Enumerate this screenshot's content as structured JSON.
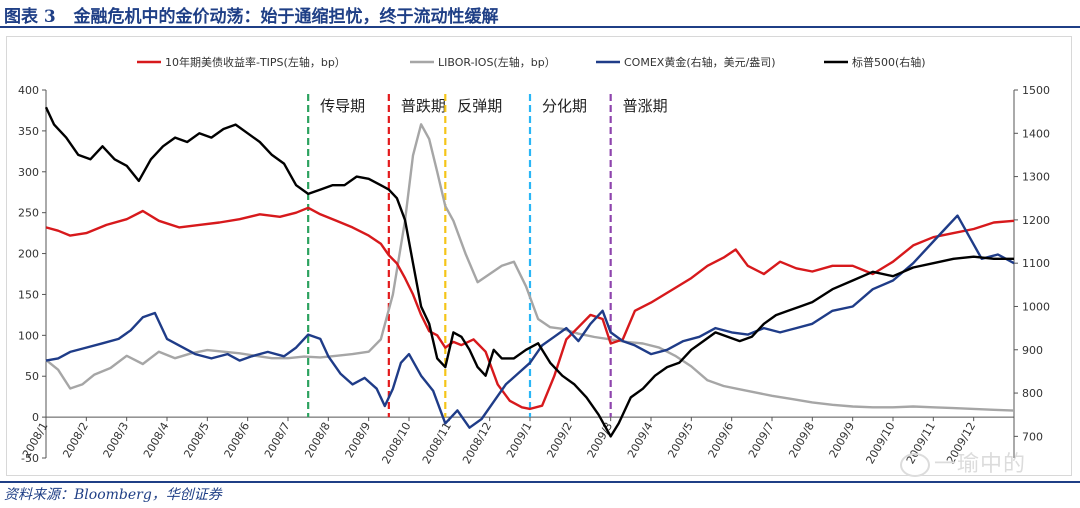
{
  "header": {
    "figure_label": "图表 3",
    "figure_title": "金融危机中的金价动荡：始于通缩担忧，终于流动性缓解"
  },
  "footer": {
    "source": "资料来源：Bloomberg，华创证券"
  },
  "watermark": {
    "text": "一瑜中的"
  },
  "colors": {
    "tips": "#d7191c",
    "libor": "#a6a6a6",
    "comex": "#1f3c88",
    "spx": "#000000",
    "phase_green": "#2ca25f",
    "phase_red": "#e31a1c",
    "phase_yellow": "#f5c518",
    "phase_cyan": "#29b6f6",
    "phase_purple": "#8e44ad",
    "header": "#1f3f86"
  },
  "chart_data": {
    "type": "line",
    "legend_position": "top",
    "x_ticks": [
      "2008/1",
      "2008/2",
      "2008/3",
      "2008/4",
      "2008/5",
      "2008/6",
      "2008/7",
      "2008/8",
      "2008/9",
      "2008/10",
      "2008/11",
      "2008/12",
      "2009/1",
      "2009/2",
      "2009/3",
      "2009/4",
      "2009/5",
      "2009/6",
      "2009/7",
      "2009/8",
      "2009/9",
      "2009/10",
      "2009/11",
      "2009/12"
    ],
    "x_range": [
      0,
      24
    ],
    "left_axis": {
      "min": -50,
      "max": 400,
      "ticks": [
        "-50",
        "0",
        "50",
        "100",
        "150",
        "200",
        "250",
        "300",
        "350",
        "400"
      ]
    },
    "right_axis": {
      "min": 650,
      "max": 1500,
      "ticks": [
        "700",
        "800",
        "900",
        "1000",
        "1100",
        "1200",
        "1300",
        "1400",
        "1500"
      ]
    },
    "phases": [
      {
        "label": "传导期",
        "x": 6.5,
        "color_key": "phase_green"
      },
      {
        "label": "普跌期",
        "x": 8.5,
        "color_key": "phase_red"
      },
      {
        "label": "反弹期",
        "x": 9.9,
        "color_key": "phase_yellow"
      },
      {
        "label": "分化期",
        "x": 12.0,
        "color_key": "phase_cyan"
      },
      {
        "label": "普涨期",
        "x": 14.0,
        "color_key": "phase_purple"
      }
    ],
    "series": [
      {
        "name": "10年期美债收益率-TIPS(左轴，bp）",
        "axis": "left",
        "color_key": "tips",
        "points": [
          [
            0,
            232
          ],
          [
            0.3,
            228
          ],
          [
            0.6,
            222
          ],
          [
            1.0,
            225
          ],
          [
            1.5,
            235
          ],
          [
            2.0,
            242
          ],
          [
            2.4,
            252
          ],
          [
            2.8,
            240
          ],
          [
            3.3,
            232
          ],
          [
            3.8,
            235
          ],
          [
            4.3,
            238
          ],
          [
            4.8,
            242
          ],
          [
            5.3,
            248
          ],
          [
            5.8,
            245
          ],
          [
            6.2,
            250
          ],
          [
            6.5,
            256
          ],
          [
            6.8,
            248
          ],
          [
            7.2,
            240
          ],
          [
            7.6,
            232
          ],
          [
            8.0,
            222
          ],
          [
            8.3,
            212
          ],
          [
            8.5,
            198
          ],
          [
            8.7,
            188
          ],
          [
            8.9,
            170
          ],
          [
            9.1,
            150
          ],
          [
            9.3,
            125
          ],
          [
            9.5,
            105
          ],
          [
            9.7,
            100
          ],
          [
            9.9,
            85
          ],
          [
            10.1,
            92
          ],
          [
            10.3,
            88
          ],
          [
            10.6,
            95
          ],
          [
            10.9,
            80
          ],
          [
            11.2,
            40
          ],
          [
            11.5,
            20
          ],
          [
            11.8,
            12
          ],
          [
            12.0,
            10
          ],
          [
            12.3,
            14
          ],
          [
            12.6,
            50
          ],
          [
            12.9,
            95
          ],
          [
            13.2,
            110
          ],
          [
            13.5,
            125
          ],
          [
            13.8,
            120
          ],
          [
            14.0,
            90
          ],
          [
            14.3,
            95
          ],
          [
            14.6,
            130
          ],
          [
            15.0,
            140
          ],
          [
            15.5,
            155
          ],
          [
            16.0,
            170
          ],
          [
            16.4,
            185
          ],
          [
            16.8,
            195
          ],
          [
            17.1,
            205
          ],
          [
            17.4,
            185
          ],
          [
            17.8,
            175
          ],
          [
            18.2,
            190
          ],
          [
            18.6,
            182
          ],
          [
            19.0,
            178
          ],
          [
            19.5,
            185
          ],
          [
            20.0,
            185
          ],
          [
            20.5,
            175
          ],
          [
            21.0,
            190
          ],
          [
            21.5,
            210
          ],
          [
            22.0,
            220
          ],
          [
            22.5,
            225
          ],
          [
            23.0,
            230
          ],
          [
            23.5,
            238
          ],
          [
            24.0,
            240
          ]
        ]
      },
      {
        "name": "LIBOR-IOS(左轴，bp）",
        "axis": "left",
        "color_key": "libor",
        "points": [
          [
            0,
            70
          ],
          [
            0.3,
            58
          ],
          [
            0.6,
            35
          ],
          [
            0.9,
            40
          ],
          [
            1.2,
            52
          ],
          [
            1.6,
            60
          ],
          [
            2.0,
            75
          ],
          [
            2.4,
            65
          ],
          [
            2.8,
            80
          ],
          [
            3.2,
            72
          ],
          [
            3.6,
            78
          ],
          [
            4.0,
            82
          ],
          [
            4.4,
            80
          ],
          [
            4.8,
            78
          ],
          [
            5.2,
            75
          ],
          [
            5.6,
            72
          ],
          [
            6.0,
            72
          ],
          [
            6.4,
            74
          ],
          [
            6.8,
            73
          ],
          [
            7.2,
            75
          ],
          [
            7.6,
            77
          ],
          [
            8.0,
            80
          ],
          [
            8.3,
            95
          ],
          [
            8.6,
            150
          ],
          [
            8.9,
            240
          ],
          [
            9.1,
            320
          ],
          [
            9.3,
            358
          ],
          [
            9.5,
            340
          ],
          [
            9.7,
            300
          ],
          [
            9.9,
            258
          ],
          [
            10.1,
            240
          ],
          [
            10.4,
            200
          ],
          [
            10.7,
            165
          ],
          [
            11.0,
            175
          ],
          [
            11.3,
            185
          ],
          [
            11.6,
            190
          ],
          [
            11.9,
            160
          ],
          [
            12.2,
            120
          ],
          [
            12.5,
            110
          ],
          [
            12.8,
            108
          ],
          [
            13.2,
            102
          ],
          [
            13.6,
            98
          ],
          [
            14.0,
            95
          ],
          [
            14.4,
            92
          ],
          [
            14.8,
            90
          ],
          [
            15.2,
            85
          ],
          [
            15.6,
            75
          ],
          [
            16.0,
            62
          ],
          [
            16.4,
            45
          ],
          [
            16.8,
            38
          ],
          [
            17.2,
            34
          ],
          [
            17.6,
            30
          ],
          [
            18.0,
            26
          ],
          [
            18.5,
            22
          ],
          [
            19.0,
            18
          ],
          [
            19.5,
            15
          ],
          [
            20.0,
            13
          ],
          [
            20.5,
            12
          ],
          [
            21.0,
            12
          ],
          [
            21.5,
            13
          ],
          [
            22.0,
            12
          ],
          [
            22.5,
            11
          ],
          [
            23.0,
            10
          ],
          [
            23.5,
            9
          ],
          [
            24.0,
            8
          ]
        ]
      },
      {
        "name": "COMEX黄金(右轴，美元/盎司)",
        "axis": "right",
        "color_key": "comex",
        "points": [
          [
            0,
            875
          ],
          [
            0.3,
            880
          ],
          [
            0.6,
            895
          ],
          [
            1.0,
            905
          ],
          [
            1.4,
            915
          ],
          [
            1.8,
            925
          ],
          [
            2.1,
            945
          ],
          [
            2.4,
            975
          ],
          [
            2.7,
            985
          ],
          [
            3.0,
            925
          ],
          [
            3.3,
            910
          ],
          [
            3.7,
            890
          ],
          [
            4.1,
            880
          ],
          [
            4.5,
            890
          ],
          [
            4.8,
            875
          ],
          [
            5.1,
            885
          ],
          [
            5.5,
            895
          ],
          [
            5.9,
            885
          ],
          [
            6.2,
            905
          ],
          [
            6.5,
            935
          ],
          [
            6.8,
            925
          ],
          [
            7.0,
            885
          ],
          [
            7.3,
            845
          ],
          [
            7.6,
            820
          ],
          [
            7.9,
            835
          ],
          [
            8.2,
            810
          ],
          [
            8.4,
            770
          ],
          [
            8.6,
            810
          ],
          [
            8.8,
            870
          ],
          [
            9.0,
            890
          ],
          [
            9.3,
            840
          ],
          [
            9.6,
            805
          ],
          [
            9.9,
            730
          ],
          [
            10.2,
            760
          ],
          [
            10.5,
            720
          ],
          [
            10.8,
            740
          ],
          [
            11.1,
            780
          ],
          [
            11.4,
            820
          ],
          [
            11.7,
            845
          ],
          [
            12.0,
            870
          ],
          [
            12.3,
            910
          ],
          [
            12.6,
            930
          ],
          [
            12.9,
            950
          ],
          [
            13.2,
            920
          ],
          [
            13.5,
            960
          ],
          [
            13.8,
            990
          ],
          [
            14.0,
            940
          ],
          [
            14.3,
            920
          ],
          [
            14.6,
            910
          ],
          [
            15.0,
            890
          ],
          [
            15.4,
            900
          ],
          [
            15.8,
            920
          ],
          [
            16.2,
            930
          ],
          [
            16.6,
            950
          ],
          [
            17.0,
            940
          ],
          [
            17.4,
            935
          ],
          [
            17.8,
            950
          ],
          [
            18.2,
            940
          ],
          [
            18.6,
            950
          ],
          [
            19.0,
            960
          ],
          [
            19.5,
            990
          ],
          [
            20.0,
            1000
          ],
          [
            20.5,
            1040
          ],
          [
            21.0,
            1060
          ],
          [
            21.5,
            1100
          ],
          [
            22.0,
            1150
          ],
          [
            22.3,
            1180
          ],
          [
            22.6,
            1210
          ],
          [
            22.9,
            1160
          ],
          [
            23.2,
            1110
          ],
          [
            23.6,
            1120
          ],
          [
            24.0,
            1100
          ]
        ]
      },
      {
        "name": "标普500(右轴)",
        "axis": "right",
        "color_key": "spx",
        "points": [
          [
            0,
            1460
          ],
          [
            0.2,
            1420
          ],
          [
            0.5,
            1390
          ],
          [
            0.8,
            1350
          ],
          [
            1.1,
            1340
          ],
          [
            1.4,
            1370
          ],
          [
            1.7,
            1340
          ],
          [
            2.0,
            1325
          ],
          [
            2.3,
            1290
          ],
          [
            2.6,
            1340
          ],
          [
            2.9,
            1370
          ],
          [
            3.2,
            1390
          ],
          [
            3.5,
            1380
          ],
          [
            3.8,
            1400
          ],
          [
            4.1,
            1390
          ],
          [
            4.4,
            1410
          ],
          [
            4.7,
            1420
          ],
          [
            5.0,
            1400
          ],
          [
            5.3,
            1380
          ],
          [
            5.6,
            1350
          ],
          [
            5.9,
            1330
          ],
          [
            6.2,
            1280
          ],
          [
            6.5,
            1260
          ],
          [
            6.8,
            1270
          ],
          [
            7.1,
            1280
          ],
          [
            7.4,
            1280
          ],
          [
            7.7,
            1300
          ],
          [
            8.0,
            1295
          ],
          [
            8.3,
            1280
          ],
          [
            8.5,
            1270
          ],
          [
            8.7,
            1250
          ],
          [
            8.9,
            1200
          ],
          [
            9.1,
            1100
          ],
          [
            9.3,
            1000
          ],
          [
            9.5,
            960
          ],
          [
            9.7,
            880
          ],
          [
            9.9,
            860
          ],
          [
            10.1,
            940
          ],
          [
            10.3,
            930
          ],
          [
            10.5,
            900
          ],
          [
            10.7,
            860
          ],
          [
            10.9,
            840
          ],
          [
            11.1,
            900
          ],
          [
            11.3,
            880
          ],
          [
            11.6,
            880
          ],
          [
            11.9,
            900
          ],
          [
            12.2,
            915
          ],
          [
            12.5,
            870
          ],
          [
            12.8,
            840
          ],
          [
            13.1,
            820
          ],
          [
            13.4,
            790
          ],
          [
            13.7,
            750
          ],
          [
            14.0,
            700
          ],
          [
            14.2,
            730
          ],
          [
            14.5,
            790
          ],
          [
            14.8,
            810
          ],
          [
            15.1,
            840
          ],
          [
            15.4,
            860
          ],
          [
            15.7,
            870
          ],
          [
            16.0,
            900
          ],
          [
            16.3,
            920
          ],
          [
            16.6,
            940
          ],
          [
            16.9,
            930
          ],
          [
            17.2,
            920
          ],
          [
            17.5,
            930
          ],
          [
            17.8,
            960
          ],
          [
            18.1,
            980
          ],
          [
            18.4,
            990
          ],
          [
            18.7,
            1000
          ],
          [
            19.0,
            1010
          ],
          [
            19.5,
            1040
          ],
          [
            20.0,
            1060
          ],
          [
            20.5,
            1080
          ],
          [
            21.0,
            1070
          ],
          [
            21.5,
            1090
          ],
          [
            22.0,
            1100
          ],
          [
            22.5,
            1110
          ],
          [
            23.0,
            1115
          ],
          [
            23.5,
            1110
          ],
          [
            24.0,
            1110
          ]
        ]
      }
    ]
  }
}
